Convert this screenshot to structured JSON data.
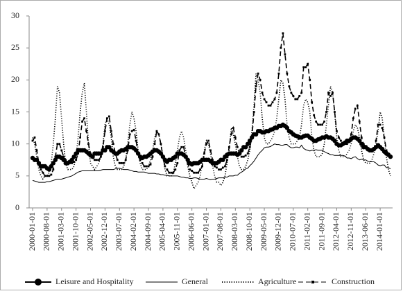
{
  "chart_data": {
    "type": "line",
    "categories": [
      "2000-01-01",
      null,
      null,
      null,
      null,
      null,
      null,
      "2000-08-01",
      null,
      null,
      null,
      null,
      null,
      null,
      "2001-03-01",
      null,
      null,
      null,
      null,
      null,
      null,
      "2001-10-01",
      null,
      null,
      null,
      null,
      null,
      null,
      "2002-05-01",
      null,
      null,
      null,
      null,
      null,
      null,
      "2002-12-01",
      null,
      null,
      null,
      null,
      null,
      null,
      "2003-07-01",
      null,
      null,
      null,
      null,
      null,
      null,
      "2004-02-01",
      null,
      null,
      null,
      null,
      null,
      null,
      "2004-09-01",
      null,
      null,
      null,
      null,
      null,
      null,
      "2005-04-01",
      null,
      null,
      null,
      null,
      null,
      null,
      "2005-11-01",
      null,
      null,
      null,
      null,
      null,
      null,
      "2006-06-01",
      null,
      null,
      null,
      null,
      null,
      null,
      "2007-01-01",
      null,
      null,
      null,
      null,
      null,
      null,
      "2007-08-01",
      null,
      null,
      null,
      null,
      null,
      null,
      "2008-03-01",
      null,
      null,
      null,
      null,
      null,
      null,
      "2008-10-01",
      null,
      null,
      null,
      null,
      null,
      null,
      "2009-05-01",
      null,
      null,
      null,
      null,
      null,
      null,
      "2009-12-01",
      null,
      null,
      null,
      null,
      null,
      null,
      "2010-07-01",
      null,
      null,
      null,
      null,
      null,
      null,
      "2011-02-01",
      null,
      null,
      null,
      null,
      null,
      null,
      "2011-09-01",
      null,
      null,
      null,
      null,
      null,
      null,
      "2012-04-01",
      null,
      null,
      null,
      null,
      null,
      null,
      "2012-11-01",
      null,
      null,
      null,
      null,
      null,
      null,
      "2013-06-01",
      null,
      null,
      null,
      null,
      null,
      null,
      "2014-01-01",
      null,
      null,
      null,
      null,
      null
    ],
    "series": [
      {
        "name": "Leisure and Hospitality",
        "color": "#000000",
        "style": "solid",
        "marker": "circle",
        "values": [
          7.8,
          7.5,
          7.5,
          7,
          6.5,
          6.5,
          6.5,
          6.2,
          6,
          6.5,
          7,
          7.5,
          8,
          8,
          7.8,
          7.5,
          7,
          7,
          7.2,
          7.5,
          8,
          8.5,
          9,
          9,
          9,
          9,
          8.8,
          8.5,
          8.2,
          8,
          8.5,
          8.5,
          8.5,
          8.5,
          9,
          9,
          9.5,
          9.5,
          9,
          8.8,
          8.5,
          8.5,
          8.8,
          9,
          9,
          9.2,
          9.5,
          9.5,
          9.5,
          9.3,
          9,
          8.5,
          8,
          7.8,
          8,
          8,
          8.2,
          8.5,
          8.8,
          9,
          9,
          8.8,
          8.5,
          8,
          7.5,
          7.2,
          7.5,
          7.5,
          7.8,
          8,
          8.5,
          8.5,
          8.5,
          8.3,
          8,
          7.5,
          7,
          6.8,
          7,
          7,
          7,
          7.2,
          7.5,
          7.5,
          7.5,
          7.5,
          7.3,
          7,
          7,
          7,
          7.2,
          7.5,
          7.5,
          8,
          8.3,
          8.5,
          8.5,
          8.5,
          8.5,
          8.3,
          8.5,
          9,
          9.5,
          9.5,
          10,
          10.5,
          11,
          11.5,
          11.5,
          12,
          12,
          11.8,
          11.8,
          12,
          12,
          12.2,
          12.3,
          12.5,
          12.5,
          12.8,
          12.8,
          13,
          12.8,
          12.5,
          12,
          11.8,
          11.5,
          11.3,
          11.2,
          11,
          11,
          11.2,
          11.3,
          11.3,
          11,
          10.8,
          10.5,
          10.5,
          10.7,
          10.8,
          11,
          11,
          11.2,
          11,
          11,
          10.8,
          10.5,
          10,
          9.8,
          9.8,
          10,
          10.2,
          10.5,
          10.5,
          10.8,
          11,
          11,
          10.8,
          10.5,
          10,
          9.5,
          9.5,
          9.2,
          9,
          9,
          9.2,
          9.5,
          9.8,
          9.5,
          9.2,
          8.8,
          8.5,
          8.3,
          8
        ]
      },
      {
        "name": "General",
        "color": "#000000",
        "style": "solid",
        "marker": null,
        "values": [
          4.3,
          4.2,
          4.1,
          4,
          4,
          4,
          4,
          4.1,
          4.1,
          4.2,
          4.3,
          4.4,
          4.5,
          4.5,
          4.5,
          4.6,
          4.7,
          4.8,
          4.9,
          5,
          5.2,
          5.4,
          5.6,
          5.7,
          5.8,
          5.8,
          5.8,
          5.8,
          5.8,
          5.8,
          5.8,
          5.8,
          5.8,
          5.9,
          6,
          6,
          6,
          6,
          6,
          6,
          6.1,
          6.2,
          6.2,
          6.1,
          6,
          6,
          6,
          5.9,
          5.8,
          5.7,
          5.7,
          5.6,
          5.6,
          5.6,
          5.6,
          5.5,
          5.4,
          5.4,
          5.4,
          5.4,
          5.3,
          5.3,
          5.2,
          5.2,
          5.1,
          5.1,
          5,
          5,
          5,
          5,
          5,
          4.9,
          4.8,
          4.8,
          4.7,
          4.7,
          4.6,
          4.6,
          4.7,
          4.7,
          4.6,
          4.5,
          4.5,
          4.5,
          4.6,
          4.5,
          4.4,
          4.5,
          4.5,
          4.6,
          4.7,
          4.7,
          4.7,
          4.8,
          4.8,
          5,
          5,
          5,
          5.1,
          5.1,
          5.4,
          5.6,
          5.8,
          6.1,
          6.2,
          6.6,
          6.9,
          7.3,
          7.8,
          8.3,
          8.7,
          9,
          9.4,
          9.5,
          9.5,
          9.6,
          9.8,
          10,
          9.9,
          9.9,
          9.8,
          9.8,
          9.9,
          9.9,
          9.6,
          9.4,
          9.4,
          9.5,
          9.5,
          9.4,
          9.8,
          9.3,
          9.1,
          9,
          8.9,
          9,
          9,
          9.1,
          9,
          9,
          9,
          8.8,
          8.6,
          8.5,
          8.3,
          8.3,
          8.2,
          8.2,
          8.2,
          8.2,
          8.2,
          8.1,
          7.8,
          7.8,
          7.7,
          7.9,
          8,
          7.7,
          7.5,
          7.6,
          7.5,
          7.5,
          7.3,
          7.2,
          7.2,
          7.2,
          7,
          6.7,
          6.6,
          6.7,
          6.7,
          6.3,
          6.3,
          6.1
        ]
      },
      {
        "name": "Agriculture",
        "color": "#000000",
        "style": "dotted",
        "marker": null,
        "values": [
          11,
          10,
          8,
          6,
          5,
          4.5,
          5,
          5,
          5.5,
          7,
          10,
          14,
          19,
          18,
          14,
          10,
          7,
          6,
          6,
          6,
          6.5,
          8,
          11,
          15,
          18,
          19.5,
          15,
          10,
          7,
          6.5,
          6,
          6.5,
          7,
          8,
          10,
          13,
          14,
          13,
          11,
          8,
          6.5,
          6,
          6,
          6,
          6.5,
          7.5,
          10,
          13,
          15,
          14,
          12,
          9,
          7,
          6,
          6,
          6,
          6.5,
          7.5,
          9,
          11,
          12,
          11.5,
          10,
          8,
          6,
          5,
          5,
          5,
          5.5,
          7,
          9,
          11,
          12,
          11,
          9,
          6.5,
          5,
          4,
          3,
          3.5,
          4,
          5,
          7,
          9,
          10.5,
          10,
          8.5,
          6.5,
          5,
          4,
          4,
          3.5,
          4,
          5,
          7,
          9,
          12.5,
          11.5,
          10,
          8,
          6.5,
          6,
          6,
          6.5,
          7.5,
          9,
          12,
          16,
          21,
          20,
          18,
          14,
          11,
          10,
          10,
          10.5,
          11,
          12,
          14,
          17,
          20,
          19.5,
          17,
          13,
          11,
          10,
          10,
          10,
          10.5,
          11,
          13,
          16,
          17,
          16.5,
          15,
          11,
          9,
          8,
          8,
          8,
          8.5,
          10,
          13,
          16,
          19,
          18,
          15,
          11,
          9,
          8,
          8,
          8,
          8.5,
          9,
          10,
          12,
          13,
          12.5,
          11,
          9,
          7.5,
          7,
          7,
          7,
          7.5,
          8.5,
          10,
          12,
          15,
          14,
          11,
          8,
          6,
          5
        ]
      },
      {
        "name": "Construction",
        "color": "#000000",
        "style": "dashed",
        "marker": "square",
        "values": [
          10.5,
          11,
          9,
          7,
          6,
          5.5,
          5,
          5,
          5,
          5.2,
          6,
          8,
          10,
          10,
          9,
          8,
          7.5,
          7,
          7,
          7,
          7.2,
          7.5,
          8.5,
          11,
          13.5,
          14,
          12,
          10,
          8.5,
          8,
          7.5,
          7.5,
          7.5,
          8,
          9.5,
          12,
          14,
          14.3,
          12,
          10,
          8.5,
          7.5,
          7,
          7,
          7,
          7.5,
          9,
          11.5,
          12,
          12.2,
          10.5,
          8.5,
          7.5,
          7,
          6.5,
          6.5,
          6.5,
          6.8,
          8,
          10,
          12,
          11.5,
          10,
          8,
          6.5,
          6,
          5.5,
          5.5,
          5.5,
          6,
          7,
          9,
          9.5,
          9.5,
          8,
          7,
          6,
          5.8,
          5.5,
          5.5,
          5.5,
          6,
          6.5,
          8.5,
          10,
          10.5,
          9,
          7.5,
          6.5,
          6.3,
          6,
          6,
          6.3,
          6.5,
          7.5,
          9.5,
          11.5,
          12.5,
          11,
          9.5,
          8.5,
          8,
          8,
          8.2,
          8.5,
          9.5,
          11,
          15,
          19,
          21,
          20,
          18,
          17,
          16.5,
          16,
          16,
          16.5,
          17,
          18,
          21,
          25,
          27.3,
          24,
          21,
          19,
          18,
          17.5,
          17,
          17,
          17.5,
          18,
          22,
          22,
          22.5,
          20,
          16.5,
          14.5,
          13.5,
          13,
          13,
          13,
          13.5,
          15,
          18,
          17.5,
          18,
          15,
          12,
          11,
          10.5,
          10,
          10,
          10,
          10.3,
          11.5,
          14,
          15.5,
          16,
          13.5,
          11,
          10,
          9.5,
          9,
          9,
          9,
          9.3,
          10.5,
          13,
          13,
          12.5,
          11,
          9,
          8.5,
          8
        ]
      }
    ],
    "ylim": [
      0,
      30
    ],
    "yticks": [
      0,
      5,
      10,
      15,
      20,
      25,
      30
    ],
    "grid": false,
    "legend": "bottom"
  }
}
